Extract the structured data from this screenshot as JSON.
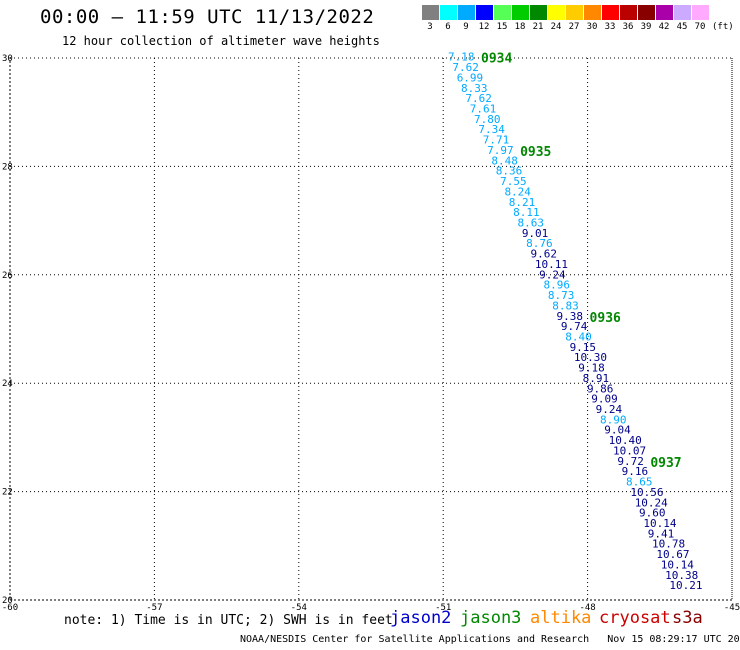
{
  "header": {
    "title": "00:00 – 11:59 UTC 11/13/2022",
    "subtitle": "12 hour collection of altimeter wave heights"
  },
  "legend": {
    "unit": "(ft)",
    "scale": [
      {
        "label": "3",
        "color": "#808080"
      },
      {
        "label": "6",
        "color": "#00ffff"
      },
      {
        "label": "9",
        "color": "#00aaff"
      },
      {
        "label": "12",
        "color": "#0000ff"
      },
      {
        "label": "15",
        "color": "#55ff55"
      },
      {
        "label": "18",
        "color": "#00cc00"
      },
      {
        "label": "21",
        "color": "#008800"
      },
      {
        "label": "24",
        "color": "#ffff00"
      },
      {
        "label": "27",
        "color": "#ffcc00"
      },
      {
        "label": "30",
        "color": "#ff8800"
      },
      {
        "label": "33",
        "color": "#ff0000"
      },
      {
        "label": "36",
        "color": "#bb0000"
      },
      {
        "label": "39",
        "color": "#880000"
      },
      {
        "label": "42",
        "color": "#aa00aa"
      },
      {
        "label": "45",
        "color": "#ccaaff"
      },
      {
        "label": "70",
        "color": "#ffaaff"
      }
    ]
  },
  "map": {
    "lon_range": [
      -60,
      -45
    ],
    "lat_range": [
      20,
      30
    ],
    "lon_ticks": [
      "-60",
      "-57",
      "-54",
      "-51",
      "-48",
      "-45"
    ],
    "lat_ticks": [
      "30",
      "28",
      "26",
      "24",
      "22",
      "20"
    ],
    "grid": "dotted",
    "track_start": {
      "lon": -50.9,
      "lat": 29.95
    },
    "track_end": {
      "lon": -46.3,
      "lat": 20.2
    },
    "time_labels": [
      "0934",
      "0935",
      "0936",
      "0937"
    ],
    "time_label_color": "#008800",
    "measurements": [
      {
        "swh": "7.18",
        "color": "#00aaff"
      },
      {
        "swh": "7.62",
        "color": "#00aaff"
      },
      {
        "swh": "6.99",
        "color": "#00aaff"
      },
      {
        "swh": "8.33",
        "color": "#00aaff"
      },
      {
        "swh": "7.62",
        "color": "#00aaff"
      },
      {
        "swh": "7.61",
        "color": "#00aaff"
      },
      {
        "swh": "7.80",
        "color": "#00aaff"
      },
      {
        "swh": "7.34",
        "color": "#00aaff"
      },
      {
        "swh": "7.71",
        "color": "#00aaff"
      },
      {
        "swh": "7.97",
        "color": "#00aaff"
      },
      {
        "swh": "8.48",
        "color": "#00aaff"
      },
      {
        "swh": "8.36",
        "color": "#00aaff"
      },
      {
        "swh": "7.55",
        "color": "#00aaff"
      },
      {
        "swh": "8.24",
        "color": "#00aaff"
      },
      {
        "swh": "8.21",
        "color": "#00aaff"
      },
      {
        "swh": "8.11",
        "color": "#00aaff"
      },
      {
        "swh": "8.63",
        "color": "#00aaff"
      },
      {
        "swh": "9.01",
        "color": "#000088"
      },
      {
        "swh": "8.76",
        "color": "#00aaff"
      },
      {
        "swh": "9.62",
        "color": "#000088"
      },
      {
        "swh": "10.11",
        "color": "#000088"
      },
      {
        "swh": "9.24",
        "color": "#000088"
      },
      {
        "swh": "8.96",
        "color": "#00aaff"
      },
      {
        "swh": "8.73",
        "color": "#00aaff"
      },
      {
        "swh": "8.83",
        "color": "#00aaff"
      },
      {
        "swh": "9.38",
        "color": "#000088"
      },
      {
        "swh": "9.74",
        "color": "#000088"
      },
      {
        "swh": "8.40",
        "color": "#00aaff"
      },
      {
        "swh": "9.15",
        "color": "#000088"
      },
      {
        "swh": "10.30",
        "color": "#000088"
      },
      {
        "swh": "9.18",
        "color": "#000088"
      },
      {
        "swh": "8.91",
        "color": "#000088"
      },
      {
        "swh": "9.86",
        "color": "#000088"
      },
      {
        "swh": "9.09",
        "color": "#000088"
      },
      {
        "swh": "9.24",
        "color": "#000088"
      },
      {
        "swh": "8.90",
        "color": "#00aaff"
      },
      {
        "swh": "9.04",
        "color": "#000088"
      },
      {
        "swh": "10.40",
        "color": "#000088"
      },
      {
        "swh": "10.07",
        "color": "#000088"
      },
      {
        "swh": "9.72",
        "color": "#000088"
      },
      {
        "swh": "9.16",
        "color": "#000088"
      },
      {
        "swh": "8.65",
        "color": "#00aaff"
      },
      {
        "swh": "10.56",
        "color": "#000088"
      },
      {
        "swh": "10.24",
        "color": "#000088"
      },
      {
        "swh": "9.60",
        "color": "#000088"
      },
      {
        "swh": "10.14",
        "color": "#000088"
      },
      {
        "swh": "9.41",
        "color": "#000088"
      },
      {
        "swh": "10.78",
        "color": "#000088"
      },
      {
        "swh": "10.67",
        "color": "#000088"
      },
      {
        "swh": "10.14",
        "color": "#000088"
      },
      {
        "swh": "10.38",
        "color": "#000088"
      },
      {
        "swh": "10.21",
        "color": "#000088"
      }
    ]
  },
  "note": "note: 1) Time is in UTC; 2) SWH is in feet",
  "satellites": [
    {
      "name": "jason2",
      "color": "#0000cc"
    },
    {
      "name": "jason3",
      "color": "#008800"
    },
    {
      "name": "altika",
      "color": "#ff8800"
    },
    {
      "name": "cryosat",
      "color": "#cc0000"
    },
    {
      "name": "s3a",
      "color": "#880000"
    }
  ],
  "footer": "NOAA/NESDIS Center for Satellite Applications and Research   Nov 15 08:29:17 UTC 2022"
}
